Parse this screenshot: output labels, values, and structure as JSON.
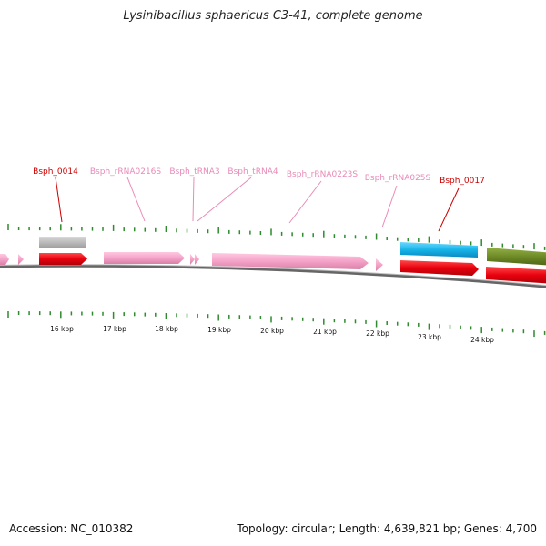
{
  "title": "Lysinibacillus sphaericus C3-41, complete genome",
  "footer": {
    "accession": "Accession: NC_010382",
    "summary": "Topology: circular; Length: 4,639,821 bp; Genes: 4,700"
  },
  "colors": {
    "protein_label": "#cc0000",
    "rna_label": "#e88ab8",
    "red_gene": "#e8000e",
    "pink_gene": "#f4a3c8",
    "grey_gene": "#b8b8b8",
    "blue_gene": "#16b4e8",
    "olive_gene": "#6e8a26",
    "tick": "#2e8b2e",
    "backbone": "#888888"
  },
  "gene_labels": [
    {
      "text": "Bsph_0014",
      "type": "protein"
    },
    {
      "text": "Bsph_rRNA0216S",
      "type": "rna"
    },
    {
      "text": "Bsph_tRNA3",
      "type": "rna"
    },
    {
      "text": "Bsph_tRNA4",
      "type": "rna"
    },
    {
      "text": "Bsph_rRNA0223S",
      "type": "rna"
    },
    {
      "text": "Bsph_rRNA025S",
      "type": "rna"
    },
    {
      "text": "Bsph_0017",
      "type": "protein"
    }
  ],
  "scale_labels": [
    "16 kbp",
    "17 kbp",
    "18 kbp",
    "19 kbp",
    "20 kbp",
    "21 kbp",
    "22 kbp",
    "23 kbp",
    "24 kbp"
  ]
}
